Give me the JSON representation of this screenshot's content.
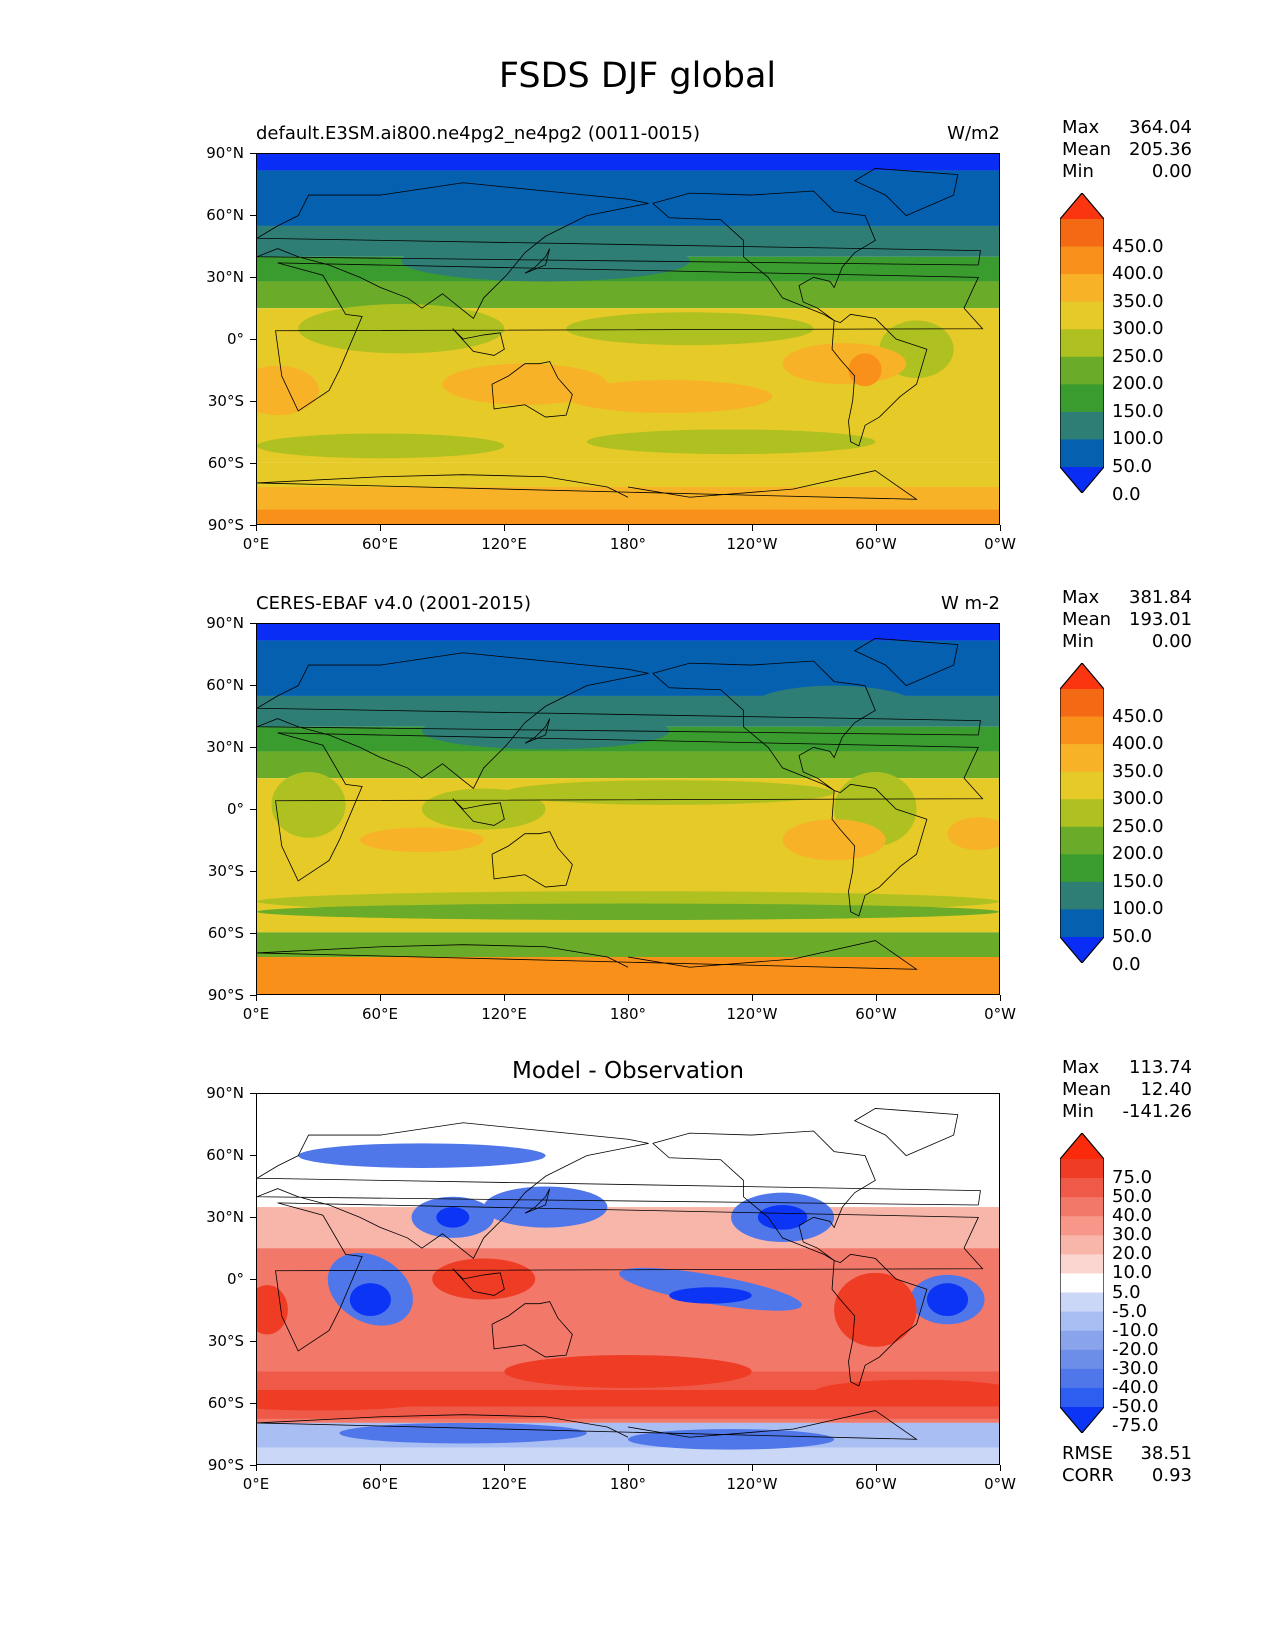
{
  "figure": {
    "title": "FSDS DJF global"
  },
  "panels": [
    {
      "title_left": "default.E3SM.ai800.ne4pg2_ne4pg2 (0011-0015)",
      "title_right": "W/m2",
      "stats": [
        {
          "label": "Max",
          "value": "364.04"
        },
        {
          "label": "Mean",
          "value": "205.36"
        },
        {
          "label": "Min",
          "value": "0.00"
        }
      ],
      "colorbar_labels": [
        "450.0",
        "400.0",
        "350.0",
        "300.0",
        "250.0",
        "200.0",
        "150.0",
        "100.0",
        "50.0",
        "0.0"
      ]
    },
    {
      "title_left": "CERES-EBAF v4.0 (2001-2015)",
      "title_right": "W m-2",
      "stats": [
        {
          "label": "Max",
          "value": "381.84"
        },
        {
          "label": "Mean",
          "value": "193.01"
        },
        {
          "label": "Min",
          "value": "0.00"
        }
      ],
      "colorbar_labels": [
        "450.0",
        "400.0",
        "350.0",
        "300.0",
        "250.0",
        "200.0",
        "150.0",
        "100.0",
        "50.0",
        "0.0"
      ]
    },
    {
      "title_center": "Model - Observation",
      "stats": [
        {
          "label": "Max",
          "value": "113.74"
        },
        {
          "label": "Mean",
          "value": "12.40"
        },
        {
          "label": "Min",
          "value": "-141.26"
        }
      ],
      "colorbar_labels": [
        "75.0",
        "50.0",
        "40.0",
        "30.0",
        "20.0",
        "10.0",
        "5.0",
        "-5.0",
        "-10.0",
        "-20.0",
        "-30.0",
        "-40.0",
        "-50.0",
        "-75.0"
      ],
      "metrics": [
        {
          "label": "RMSE",
          "value": "38.51"
        },
        {
          "label": "CORR",
          "value": "0.93"
        }
      ]
    }
  ],
  "axes": {
    "lat_labels": [
      "90°N",
      "60°N",
      "30°N",
      "0°",
      "30°S",
      "60°S",
      "90°S"
    ],
    "lon_labels": [
      "0°E",
      "60°E",
      "120°E",
      "180°",
      "120°W",
      "60°W",
      "0°W"
    ]
  },
  "colors": {
    "abs_scale": [
      "#0a2df5",
      "#0560b0",
      "#2e7e75",
      "#3a9c2e",
      "#6aab2a",
      "#aec121",
      "#e6ca28",
      "#f7b228",
      "#f8901a",
      "#f46a14",
      "#fb3510"
    ],
    "diff_scale": [
      "#0b34f5",
      "#2d5ef0",
      "#4f77ea",
      "#6c8ee8",
      "#8aa4ec",
      "#a9bef2",
      "#cbd7f7",
      "#ffffff",
      "#fbd5cf",
      "#f8b6aa",
      "#f6978a",
      "#f2786a",
      "#ef5a48",
      "#ef3c25",
      "#fb2a0c"
    ]
  }
}
